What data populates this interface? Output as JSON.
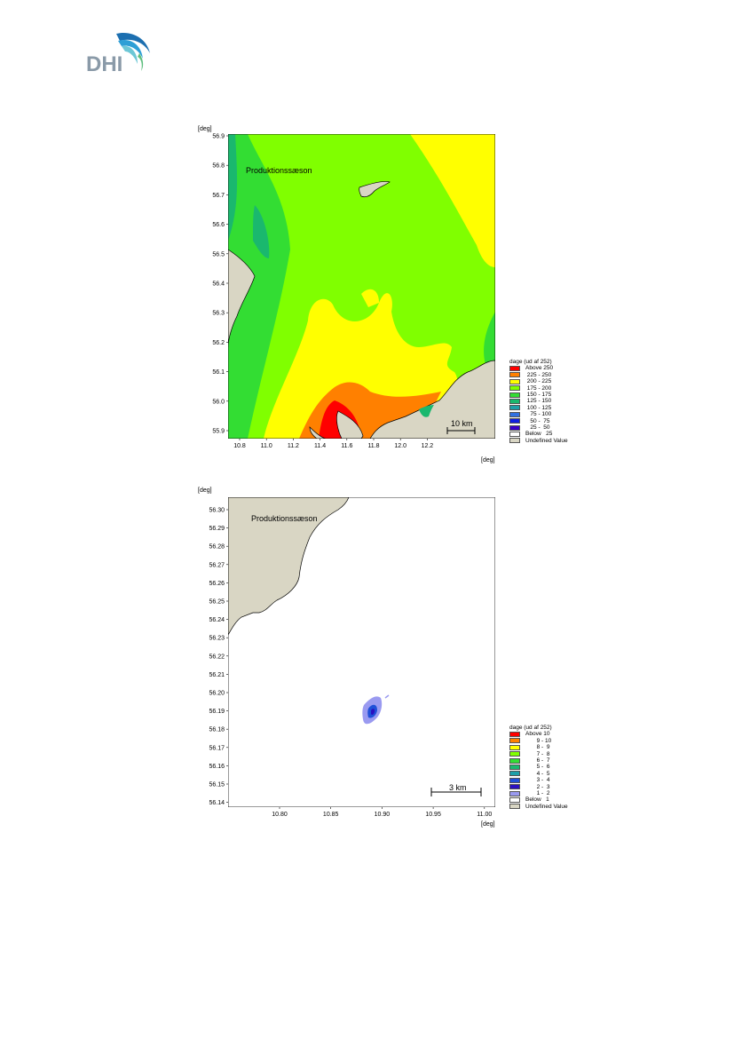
{
  "header": {
    "logo_text": "DHI",
    "logo_colors": {
      "text": "#8a9aa8",
      "wave_dark": "#1c6fb0",
      "wave_mid": "#2e9fd6",
      "wave_light": "#6dc7d6",
      "wave_green": "#5fbf7f"
    }
  },
  "maps": [
    {
      "title": "Produktionssæson",
      "unit_y": "[deg]",
      "unit_x": "[deg]",
      "y_ticks": [
        "56.9",
        "56.8",
        "56.7",
        "56.6",
        "56.5",
        "56.4",
        "56.3",
        "56.2",
        "56.1",
        "56.0",
        "55.9"
      ],
      "x_ticks": [
        "10.8",
        "11.0",
        "11.2",
        "11.4",
        "11.6",
        "11.8",
        "12.0",
        "12.2"
      ],
      "scale_bar": "10 km",
      "legend": {
        "title": "dage (ud af 252)",
        "items": [
          {
            "label": "Above 250",
            "color": "#ff0000"
          },
          {
            "label": " 225 - 250",
            "color": "#ff8000"
          },
          {
            "label": " 200 - 225",
            "color": "#ffff00"
          },
          {
            "label": " 175 - 200",
            "color": "#80ff00"
          },
          {
            "label": " 150 - 175",
            "color": "#33dd33"
          },
          {
            "label": " 125 - 150",
            "color": "#1ab86e"
          },
          {
            "label": " 100 - 125",
            "color": "#1e9fa8"
          },
          {
            "label": "   75 - 100",
            "color": "#3070e0"
          },
          {
            "label": "   50 -  75",
            "color": "#1020e0"
          },
          {
            "label": "   25 -  50",
            "color": "#3a00c8"
          },
          {
            "label": "Below   25",
            "color": "#ffffff"
          },
          {
            "label": "Undefined Value",
            "color": "#d9d6c4"
          }
        ]
      }
    },
    {
      "title": "Produktionssæson",
      "unit_y": "[deg]",
      "unit_x": "[deg]",
      "y_ticks": [
        "56.30",
        "56.29",
        "56.28",
        "56.27",
        "56.26",
        "56.25",
        "56.24",
        "56.23",
        "56.22",
        "56.21",
        "56.20",
        "56.19",
        "56.18",
        "56.17",
        "56.16",
        "56.15",
        "56.14"
      ],
      "x_ticks": [
        "10.80",
        "10.85",
        "10.90",
        "10.95",
        "11.00"
      ],
      "scale_bar": "3 km",
      "legend": {
        "title": "dage (ud af 252)",
        "items": [
          {
            "label": "Above 10",
            "color": "#ff0000"
          },
          {
            "label": "       9 - 10",
            "color": "#ff8000"
          },
          {
            "label": "       8 -  9",
            "color": "#ffff00"
          },
          {
            "label": "       7 -  8",
            "color": "#80ff00"
          },
          {
            "label": "       6 -  7",
            "color": "#33dd33"
          },
          {
            "label": "       5 -  6",
            "color": "#1ab86e"
          },
          {
            "label": "       4 -  5",
            "color": "#1e9fa8"
          },
          {
            "label": "       3 -  4",
            "color": "#2050d8"
          },
          {
            "label": "       2 -  3",
            "color": "#2a10c0"
          },
          {
            "label": "       1 -  2",
            "color": "#9a9af0"
          },
          {
            "label": "Below   1",
            "color": "#ffffff"
          },
          {
            "label": "Undefined Value",
            "color": "#d9d6c4"
          }
        ]
      }
    }
  ]
}
